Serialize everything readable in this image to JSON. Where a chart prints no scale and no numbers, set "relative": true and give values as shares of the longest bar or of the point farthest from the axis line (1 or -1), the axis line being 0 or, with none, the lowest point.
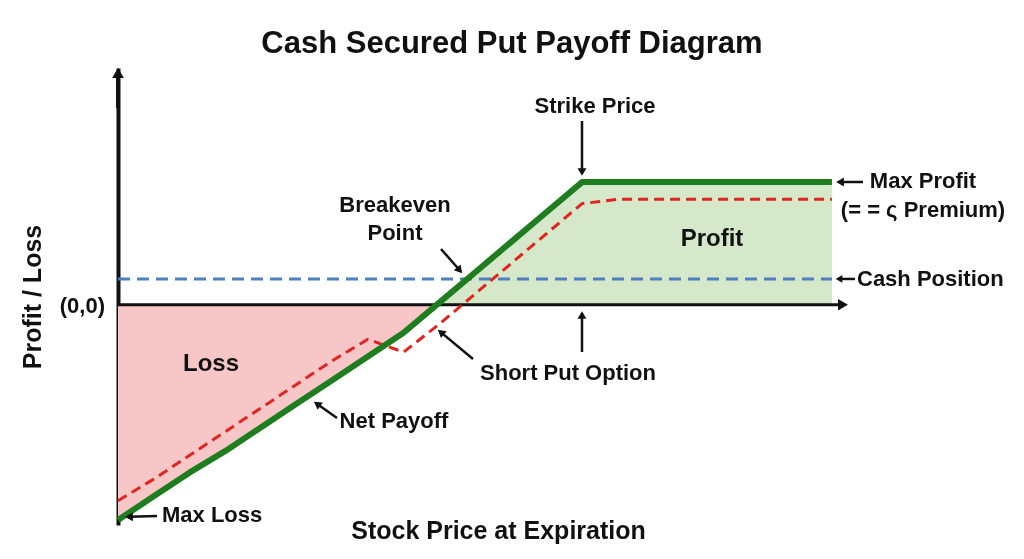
{
  "chart_data": {
    "type": "line",
    "title": "Cash Secured Put Payoff Diagram",
    "xlabel": "Stock Price at Expiration",
    "ylabel": "Profit / Loss",
    "relative": true,
    "categories": [
      null,
      null,
      null,
      null,
      null,
      null,
      null,
      null,
      null,
      null,
      null,
      null,
      null,
      null,
      null,
      null,
      null,
      null,
      null,
      null,
      null
    ],
    "series": [
      {
        "name": "Loss",
        "type": "area",
        "color": "#f7c6c6",
        "values": [
          -1,
          -0.89,
          -0.78,
          -0.68,
          -0.57,
          -0.46,
          -0.35,
          -0.24,
          -0.13,
          0,
          null,
          null,
          null,
          null,
          null,
          null,
          null,
          null,
          null,
          null,
          null
        ]
      },
      {
        "name": "Profit",
        "type": "area",
        "color": "#d5e8c9",
        "values": [
          null,
          null,
          null,
          null,
          null,
          null,
          null,
          null,
          null,
          0.01,
          0.15,
          0.29,
          0.43,
          0.57,
          0.57,
          0.57,
          0.57,
          0.57,
          0.57,
          0.57,
          0.57
        ]
      },
      {
        "name": "Short Put Option",
        "color": "#e0241f",
        "line_style": "dashed",
        "values": [
          -0.91,
          -0.81,
          -0.7,
          -0.59,
          -0.48,
          -0.37,
          -0.26,
          -0.16,
          -0.22,
          -0.09,
          0.05,
          0.19,
          0.33,
          0.47,
          0.49,
          0.49,
          0.49,
          0.49,
          0.49,
          0.49,
          0.49
        ]
      },
      {
        "name": "Net Payoff",
        "color": "#1e7d1e",
        "values": [
          -1,
          -0.89,
          -0.78,
          -0.68,
          -0.57,
          -0.46,
          -0.35,
          -0.24,
          -0.13,
          0.01,
          0.15,
          0.29,
          0.43,
          0.57,
          0.57,
          0.57,
          0.57,
          0.57,
          0.57,
          0.57,
          0.57
        ]
      }
    ],
    "ref_lines": [
      {
        "axis": "y",
        "value": 0.12,
        "label": "Cash Position",
        "color": "#4f7fbf",
        "line_style": "dashed"
      }
    ],
    "annotations": [
      "Strike Price",
      "Breakeven\nPoint",
      "Max Profit\n(= = ς Premium)",
      "Max Loss",
      "(0,0)"
    ]
  }
}
